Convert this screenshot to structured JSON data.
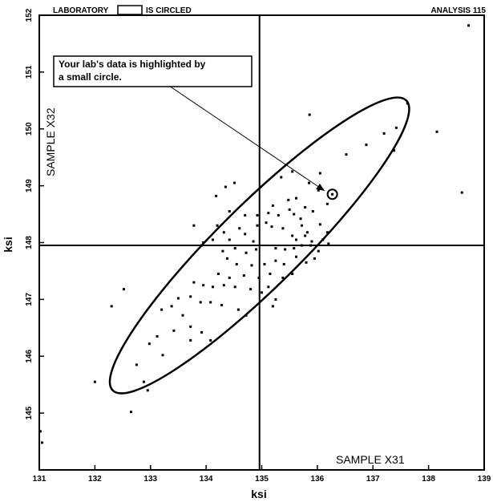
{
  "header": {
    "left_prefix": "LABORATORY",
    "left_suffix": "IS CIRCLED",
    "right": "ANALYSIS 115"
  },
  "annotation": {
    "line1": "Your lab's data is highlighted by",
    "line2": "a small circle."
  },
  "chart_data": {
    "type": "scatter",
    "xlabel": "ksi",
    "ylabel": "ksi",
    "xlim": [
      131,
      139
    ],
    "ylim": [
      144,
      152
    ],
    "x_ticks": [
      131,
      132,
      133,
      134,
      135,
      136,
      137,
      138,
      139
    ],
    "y_ticks": [
      145,
      146,
      147,
      148,
      149,
      150,
      151,
      152
    ],
    "quadrant_labels": {
      "x_sample": "SAMPLE X31",
      "y_sample": "SAMPLE X32"
    },
    "reference_lines": {
      "x": 134.96,
      "y": 147.95
    },
    "ellipse": {
      "center": [
        134.96,
        147.95
      ],
      "major_end": [
        137.6,
        150.5
      ],
      "minor_end": [
        135.3,
        147.3
      ]
    },
    "highlighted_point": {
      "x": 136.27,
      "y": 148.85
    },
    "points": [
      [
        134.51,
        149.05
      ],
      [
        134.98,
        148.98
      ],
      [
        135.35,
        149.15
      ],
      [
        135.55,
        149.25
      ],
      [
        135.85,
        149.05
      ],
      [
        136.02,
        148.92
      ],
      [
        135.2,
        148.65
      ],
      [
        135.48,
        148.75
      ],
      [
        135.62,
        148.78
      ],
      [
        135.78,
        148.62
      ],
      [
        135.92,
        148.55
      ],
      [
        136.18,
        148.68
      ],
      [
        134.18,
        148.82
      ],
      [
        134.42,
        148.55
      ],
      [
        134.7,
        148.48
      ],
      [
        134.92,
        148.48
      ],
      [
        135.12,
        148.52
      ],
      [
        135.3,
        148.48
      ],
      [
        135.5,
        148.58
      ],
      [
        135.58,
        148.5
      ],
      [
        135.7,
        148.42
      ],
      [
        135.72,
        148.3
      ],
      [
        135.82,
        148.18
      ],
      [
        136.05,
        148.32
      ],
      [
        136.18,
        148.18
      ],
      [
        134.2,
        148.3
      ],
      [
        134.32,
        148.18
      ],
      [
        134.6,
        148.25
      ],
      [
        134.92,
        148.3
      ],
      [
        135.08,
        148.35
      ],
      [
        135.18,
        148.28
      ],
      [
        135.38,
        148.25
      ],
      [
        135.55,
        148.12
      ],
      [
        135.62,
        148.05
      ],
      [
        135.78,
        148.12
      ],
      [
        135.9,
        148.02
      ],
      [
        136.1,
        148.05
      ],
      [
        133.78,
        148.3
      ],
      [
        133.95,
        148.0
      ],
      [
        134.12,
        148.05
      ],
      [
        134.42,
        148.05
      ],
      [
        134.7,
        148.15
      ],
      [
        134.85,
        148.02
      ],
      [
        133.92,
        147.95
      ],
      [
        134.3,
        147.85
      ],
      [
        134.52,
        147.9
      ],
      [
        134.72,
        147.82
      ],
      [
        134.9,
        147.88
      ],
      [
        135.25,
        147.9
      ],
      [
        135.42,
        147.88
      ],
      [
        135.58,
        147.9
      ],
      [
        135.72,
        147.95
      ],
      [
        135.88,
        147.95
      ],
      [
        136.02,
        147.85
      ],
      [
        136.2,
        147.98
      ],
      [
        134.38,
        147.72
      ],
      [
        134.55,
        147.62
      ],
      [
        134.82,
        147.6
      ],
      [
        135.05,
        147.62
      ],
      [
        135.25,
        147.68
      ],
      [
        135.4,
        147.62
      ],
      [
        135.62,
        147.75
      ],
      [
        135.8,
        147.65
      ],
      [
        135.95,
        147.72
      ],
      [
        134.22,
        147.45
      ],
      [
        134.42,
        147.38
      ],
      [
        134.68,
        147.42
      ],
      [
        134.95,
        147.38
      ],
      [
        135.15,
        147.45
      ],
      [
        135.38,
        147.38
      ],
      [
        135.55,
        147.45
      ],
      [
        133.78,
        147.3
      ],
      [
        133.95,
        147.25
      ],
      [
        134.12,
        147.22
      ],
      [
        134.32,
        147.25
      ],
      [
        134.52,
        147.22
      ],
      [
        134.8,
        147.18
      ],
      [
        135.0,
        147.12
      ],
      [
        135.12,
        147.22
      ],
      [
        135.25,
        147.0
      ],
      [
        133.5,
        147.02
      ],
      [
        133.72,
        147.05
      ],
      [
        133.9,
        146.95
      ],
      [
        134.08,
        146.95
      ],
      [
        134.28,
        146.9
      ],
      [
        134.58,
        146.82
      ],
      [
        134.72,
        146.72
      ],
      [
        135.2,
        146.88
      ],
      [
        133.2,
        146.82
      ],
      [
        133.38,
        146.88
      ],
      [
        133.58,
        146.72
      ],
      [
        133.72,
        146.52
      ],
      [
        133.92,
        146.42
      ],
      [
        134.08,
        146.28
      ],
      [
        133.12,
        146.35
      ],
      [
        133.42,
        146.45
      ],
      [
        133.72,
        146.28
      ],
      [
        132.98,
        146.22
      ],
      [
        133.22,
        146.02
      ],
      [
        132.88,
        145.55
      ],
      [
        132.95,
        145.4
      ],
      [
        132.75,
        145.85
      ],
      [
        131.02,
        144.68
      ],
      [
        131.05,
        144.48
      ],
      [
        132.0,
        145.55
      ],
      [
        132.3,
        146.88
      ],
      [
        132.52,
        147.18
      ],
      [
        132.65,
        145.02
      ],
      [
        134.35,
        148.98
      ],
      [
        135.86,
        150.25
      ],
      [
        137.62,
        150.45
      ],
      [
        138.15,
        149.95
      ],
      [
        138.72,
        151.82
      ],
      [
        138.6,
        148.88
      ],
      [
        137.42,
        150.02
      ],
      [
        137.2,
        149.92
      ],
      [
        137.38,
        149.62
      ],
      [
        136.88,
        149.72
      ],
      [
        136.52,
        149.55
      ],
      [
        136.05,
        149.22
      ]
    ]
  }
}
